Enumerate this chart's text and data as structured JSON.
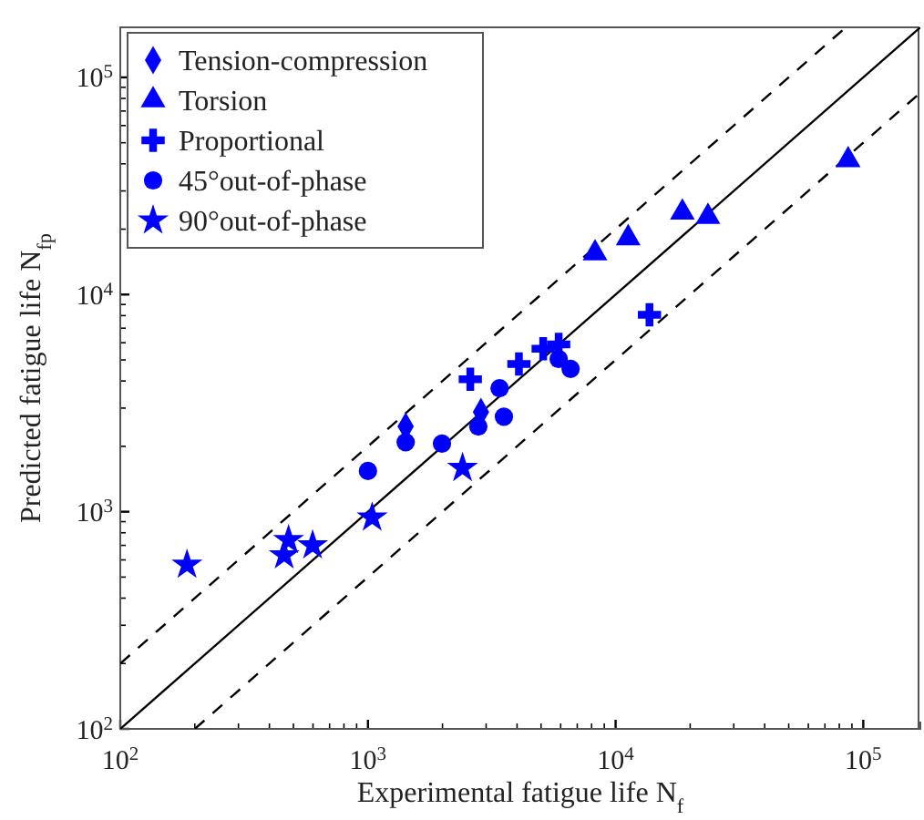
{
  "chart_data": {
    "type": "scatter",
    "xlabel": "Experimental fatigue life N$_{f}$",
    "ylabel": "Predicted fatigue life N$_{fp}$",
    "log": "xy",
    "grid": false,
    "legend": "top left",
    "xlim": [
      100,
      170000
    ],
    "ylim": [
      100,
      170000
    ],
    "xticks": [
      {
        "value": 100,
        "label": "10$^{2}$"
      },
      {
        "value": 200,
        "label": null
      },
      {
        "value": 300,
        "label": null
      },
      {
        "value": 400,
        "label": null
      },
      {
        "value": 500,
        "label": null
      },
      {
        "value": 600,
        "label": null
      },
      {
        "value": 700,
        "label": null
      },
      {
        "value": 800,
        "label": null
      },
      {
        "value": 900,
        "label": null
      },
      {
        "value": 1000,
        "label": "10$^{3}$"
      },
      {
        "value": 2000,
        "label": null
      },
      {
        "value": 3000,
        "label": null
      },
      {
        "value": 4000,
        "label": null
      },
      {
        "value": 5000,
        "label": null
      },
      {
        "value": 6000,
        "label": null
      },
      {
        "value": 7000,
        "label": null
      },
      {
        "value": 8000,
        "label": null
      },
      {
        "value": 9000,
        "label": null
      },
      {
        "value": 10000,
        "label": "10$^{4}$"
      },
      {
        "value": 20000,
        "label": null
      },
      {
        "value": 30000,
        "label": null
      },
      {
        "value": 40000,
        "label": null
      },
      {
        "value": 50000,
        "label": null
      },
      {
        "value": 60000,
        "label": null
      },
      {
        "value": 70000,
        "label": null
      },
      {
        "value": 80000,
        "label": null
      },
      {
        "value": 90000,
        "label": null
      },
      {
        "value": 100000,
        "label": "10$^{5}$"
      }
    ],
    "yticks": [
      {
        "value": 100,
        "label": "10$^{2}$"
      },
      {
        "value": 200,
        "label": null
      },
      {
        "value": 300,
        "label": null
      },
      {
        "value": 400,
        "label": null
      },
      {
        "value": 500,
        "label": null
      },
      {
        "value": 600,
        "label": null
      },
      {
        "value": 700,
        "label": null
      },
      {
        "value": 800,
        "label": null
      },
      {
        "value": 900,
        "label": null
      },
      {
        "value": 1000,
        "label": "10$^{3}$"
      },
      {
        "value": 2000,
        "label": null
      },
      {
        "value": 3000,
        "label": null
      },
      {
        "value": 4000,
        "label": null
      },
      {
        "value": 5000,
        "label": null
      },
      {
        "value": 6000,
        "label": null
      },
      {
        "value": 7000,
        "label": null
      },
      {
        "value": 8000,
        "label": null
      },
      {
        "value": 9000,
        "label": null
      },
      {
        "value": 10000,
        "label": "10$^{4}$"
      },
      {
        "value": 20000,
        "label": null
      },
      {
        "value": 30000,
        "label": null
      },
      {
        "value": 40000,
        "label": null
      },
      {
        "value": 50000,
        "label": null
      },
      {
        "value": 60000,
        "label": null
      },
      {
        "value": 70000,
        "label": null
      },
      {
        "value": 80000,
        "label": null
      },
      {
        "value": 90000,
        "label": null
      },
      {
        "value": 100000,
        "label": "10$^{5}$"
      }
    ],
    "series": [
      {
        "name": "Tension-compression",
        "color": "#0000ff",
        "marker": "diamond",
        "x": [
          1420,
          2860
        ],
        "values": [
          2470,
          2880
        ]
      },
      {
        "name": "Torsion",
        "color": "#0000ff",
        "marker": "triangle",
        "x": [
          8260,
          11240,
          18600,
          23600,
          86900
        ],
        "values": [
          15500,
          18200,
          23900,
          22800,
          41600
        ]
      },
      {
        "name": "Proportional",
        "color": "#0000ff",
        "marker": "cross",
        "x": [
          2590,
          4070,
          5100,
          5890,
          13700
        ],
        "values": [
          4070,
          4790,
          5630,
          5900,
          8070
        ]
      },
      {
        "name": "45°out-of-phase",
        "color": "#0000ff",
        "marker": "circle",
        "x": [
          1000,
          1420,
          1990,
          2790,
          3540,
          3400,
          5890,
          6580
        ],
        "values": [
          1540,
          2090,
          2060,
          2470,
          2740,
          3700,
          5050,
          4550
        ]
      },
      {
        "name": "90°out-of-phase",
        "color": "#0000ff",
        "marker": "star",
        "x": [
          186,
          478,
          459,
          598,
          1040,
          2410
        ],
        "values": [
          570,
          740,
          630,
          700,
          940,
          1590
        ]
      },
      {
        "type": "line",
        "color": "#000000",
        "line_style": "solid",
        "x": [
          100,
          170000
        ],
        "values": [
          100,
          170000
        ]
      },
      {
        "type": "line",
        "color": "#000000",
        "line_style": "dashed",
        "x": [
          100,
          85000
        ],
        "values": [
          200,
          170000
        ]
      },
      {
        "type": "line",
        "color": "#000000",
        "line_style": "dashed",
        "x": [
          200,
          170000
        ],
        "values": [
          100,
          85000
        ]
      }
    ]
  }
}
